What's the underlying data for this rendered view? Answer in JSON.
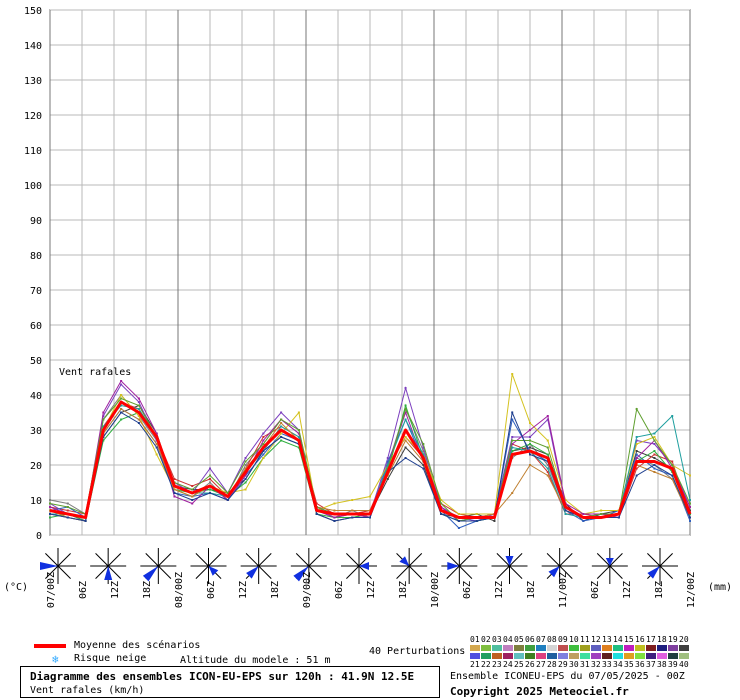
{
  "chart_data": {
    "type": "line",
    "title": "Vent rafales",
    "ylim": [
      0,
      150
    ],
    "yticks": [
      0,
      10,
      20,
      30,
      40,
      50,
      60,
      70,
      80,
      90,
      100,
      110,
      120,
      130,
      140,
      150
    ],
    "x_tick_labels": [
      "07/00Z",
      "06Z",
      "12Z",
      "18Z",
      "08/00Z",
      "06Z",
      "12Z",
      "18Z",
      "09/00Z",
      "06Z",
      "12Z",
      "18Z",
      "10/00Z",
      "06Z",
      "12Z",
      "18Z",
      "11/00Z",
      "06Z",
      "12Z",
      "18Z",
      "12/00Z"
    ],
    "left_unit": "(°C)",
    "right_unit": "(mm)",
    "grid": true,
    "mean_series": {
      "name": "Moyenne des scénarios",
      "color": "#ff0000",
      "values": [
        7,
        6,
        5,
        30,
        38,
        35,
        28,
        14,
        12,
        14,
        11,
        18,
        25,
        30,
        27,
        7,
        6,
        6,
        6,
        18,
        30,
        22,
        7,
        5,
        5,
        5,
        23,
        24,
        22,
        8,
        5,
        5,
        6,
        21,
        21,
        19,
        6
      ]
    },
    "members": [
      {
        "color": "#7f7f7f",
        "values": [
          10,
          9,
          6,
          33,
          40,
          34,
          27,
          13,
          11,
          15,
          10,
          20,
          26,
          33,
          29,
          8,
          5,
          7,
          5,
          20,
          36,
          24,
          8,
          4,
          4,
          5,
          22,
          26,
          20,
          7,
          5,
          5,
          6,
          22,
          20,
          16,
          5
        ]
      },
      {
        "color": "#3f3f3f",
        "values": [
          6,
          5,
          4,
          28,
          35,
          37,
          29,
          14,
          13,
          13,
          12,
          16,
          24,
          28,
          26,
          6,
          4,
          5,
          6,
          16,
          25,
          20,
          6,
          5,
          6,
          4,
          24,
          25,
          23,
          9,
          4,
          6,
          7,
          24,
          22,
          19,
          7
        ]
      },
      {
        "color": "#cc3333",
        "values": [
          8,
          7,
          6,
          31,
          38,
          36,
          28,
          16,
          14,
          16,
          11,
          19,
          28,
          31,
          28,
          9,
          6,
          6,
          7,
          19,
          28,
          22,
          9,
          6,
          5,
          6,
          26,
          24,
          18,
          6,
          6,
          5,
          5,
          19,
          23,
          21,
          6
        ]
      },
      {
        "color": "#7c3fbf",
        "values": [
          9,
          6,
          4,
          34,
          43,
          38,
          27,
          15,
          12,
          19,
          12,
          22,
          29,
          35,
          30,
          7,
          5,
          6,
          6,
          22,
          42,
          25,
          8,
          5,
          4,
          6,
          28,
          28,
          33,
          8,
          5,
          6,
          6,
          27,
          26,
          20,
          8
        ]
      },
      {
        "color": "#2f5fbf",
        "values": [
          7,
          8,
          5,
          29,
          36,
          33,
          26,
          12,
          11,
          12,
          10,
          17,
          23,
          29,
          27,
          8,
          6,
          6,
          5,
          21,
          33,
          21,
          7,
          2,
          4,
          5,
          33,
          24,
          21,
          7,
          4,
          5,
          7,
          23,
          19,
          17,
          4
        ]
      },
      {
        "color": "#2faf3f",
        "values": [
          5,
          6,
          4,
          27,
          33,
          35,
          28,
          13,
          12,
          13,
          11,
          15,
          22,
          27,
          25,
          6,
          5,
          5,
          6,
          18,
          37,
          22,
          6,
          4,
          4,
          5,
          24,
          26,
          23,
          8,
          5,
          5,
          6,
          21,
          24,
          18,
          6
        ]
      },
      {
        "color": "#d4c21f",
        "values": [
          7,
          6,
          5,
          30,
          40,
          34,
          23,
          13,
          11,
          14,
          12,
          13,
          22,
          29,
          35,
          7,
          9,
          10,
          11,
          20,
          28,
          23,
          10,
          6,
          6,
          6,
          46,
          32,
          27,
          10,
          6,
          7,
          7,
          26,
          28,
          20,
          17
        ]
      },
      {
        "color": "#9f1f9f",
        "values": [
          8,
          6,
          5,
          35,
          44,
          39,
          29,
          11,
          9,
          14,
          10,
          17,
          27,
          33,
          29,
          7,
          5,
          6,
          5,
          20,
          35,
          21,
          8,
          4,
          5,
          6,
          26,
          30,
          34,
          9,
          6,
          6,
          5,
          22,
          27,
          19,
          8
        ]
      },
      {
        "color": "#1f9f9f",
        "values": [
          6,
          6,
          5,
          31,
          37,
          36,
          28,
          14,
          12,
          12,
          11,
          18,
          24,
          31,
          28,
          7,
          6,
          6,
          6,
          20,
          33,
          23,
          7,
          5,
          5,
          5,
          25,
          24,
          19,
          6,
          5,
          5,
          6,
          28,
          29,
          34,
          10
        ]
      },
      {
        "color": "#bf7f2f",
        "values": [
          7,
          5,
          4,
          29,
          36,
          33,
          26,
          13,
          11,
          14,
          11,
          19,
          25,
          32,
          27,
          8,
          7,
          7,
          7,
          17,
          27,
          21,
          7,
          5,
          5,
          6,
          12,
          20,
          17,
          7,
          5,
          5,
          6,
          20,
          18,
          16,
          5
        ]
      },
      {
        "color": "#5f9f2f",
        "values": [
          9,
          8,
          6,
          33,
          39,
          37,
          28,
          15,
          13,
          17,
          12,
          21,
          26,
          33,
          30,
          8,
          6,
          6,
          6,
          19,
          36,
          26,
          9,
          4,
          5,
          5,
          27,
          27,
          25,
          8,
          5,
          6,
          6,
          36,
          27,
          20,
          9
        ]
      },
      {
        "color": "#1f3f8f",
        "values": [
          6,
          5,
          4,
          28,
          35,
          32,
          25,
          12,
          10,
          12,
          10,
          16,
          24,
          28,
          26,
          6,
          4,
          5,
          5,
          18,
          22,
          19,
          6,
          4,
          4,
          5,
          35,
          23,
          21,
          7,
          5,
          5,
          5,
          17,
          20,
          17,
          5
        ]
      }
    ],
    "wind_roses": [
      {
        "dir": "W",
        "len": 18
      },
      {
        "dir": "S",
        "len": 14
      },
      {
        "dir": "SW",
        "len": 18
      },
      {
        "dir": "SE",
        "len": 10
      },
      {
        "dir": "SW",
        "len": 14
      },
      {
        "dir": "SW",
        "len": 18
      },
      {
        "dir": "E",
        "len": 10
      },
      {
        "dir": "NW",
        "len": 10
      },
      {
        "dir": "W",
        "len": 12
      },
      {
        "dir": "N",
        "len": 10
      },
      {
        "dir": "SW",
        "len": 12
      },
      {
        "dir": "N",
        "len": 8
      },
      {
        "dir": "SW",
        "len": 14
      }
    ]
  },
  "legend": {
    "mean_label": "Moyenne des scénarios",
    "snow_label": "Risque neige",
    "snow_icon": "snowflake-icon",
    "altitude": "Altitude du modele : 51 m",
    "perturbations": "40 Perturbations",
    "member_nums_top": [
      "01",
      "02",
      "03",
      "04",
      "05",
      "06",
      "07",
      "08",
      "09",
      "10",
      "11",
      "12",
      "13",
      "14",
      "15",
      "16",
      "17",
      "18",
      "19",
      "20"
    ],
    "member_nums_bottom": [
      "21",
      "22",
      "23",
      "24",
      "25",
      "26",
      "27",
      "28",
      "29",
      "30",
      "31",
      "32",
      "33",
      "34",
      "35",
      "36",
      "37",
      "38",
      "39",
      "40"
    ],
    "swatch_colors_top": [
      "#d4a84f",
      "#7fbf3f",
      "#4fbf9f",
      "#bf7fbf",
      "#7f7f3f",
      "#3f9f3f",
      "#1f7fbf",
      "#d4d4d4",
      "#bf4f4f",
      "#3fbf3f",
      "#9f9f1f",
      "#5f5fbf",
      "#df7f1f",
      "#1fbf7f",
      "#bf1fbf",
      "#bfbf1f",
      "#7f1f1f",
      "#1f1f7f",
      "#7f3f9f",
      "#3f3f3f"
    ],
    "swatch_colors_bottom": [
      "#4f4fdf",
      "#1f9f5f",
      "#bf5f1f",
      "#9f1f5f",
      "#5fbfbf",
      "#3f7f1f",
      "#df3f7f",
      "#1f5f9f",
      "#7f7fdf",
      "#bf9f5f",
      "#3fdf9f",
      "#9f3fbf",
      "#5f1f1f",
      "#1fdfdf",
      "#df9f1f",
      "#7fdf3f",
      "#3f1f7f",
      "#df5fdf",
      "#1f3f3f",
      "#9fbf7f"
    ]
  },
  "info": {
    "title": "Diagramme des ensembles ICON-EU-EPS sur 120h : 41.9N 12.5E",
    "variable": "Vent rafales (km/h)",
    "ensemble": "Ensemble ICONEU-EPS du 07/05/2025 - 00Z",
    "copyright": "Copyright 2025 Meteociel.fr"
  }
}
